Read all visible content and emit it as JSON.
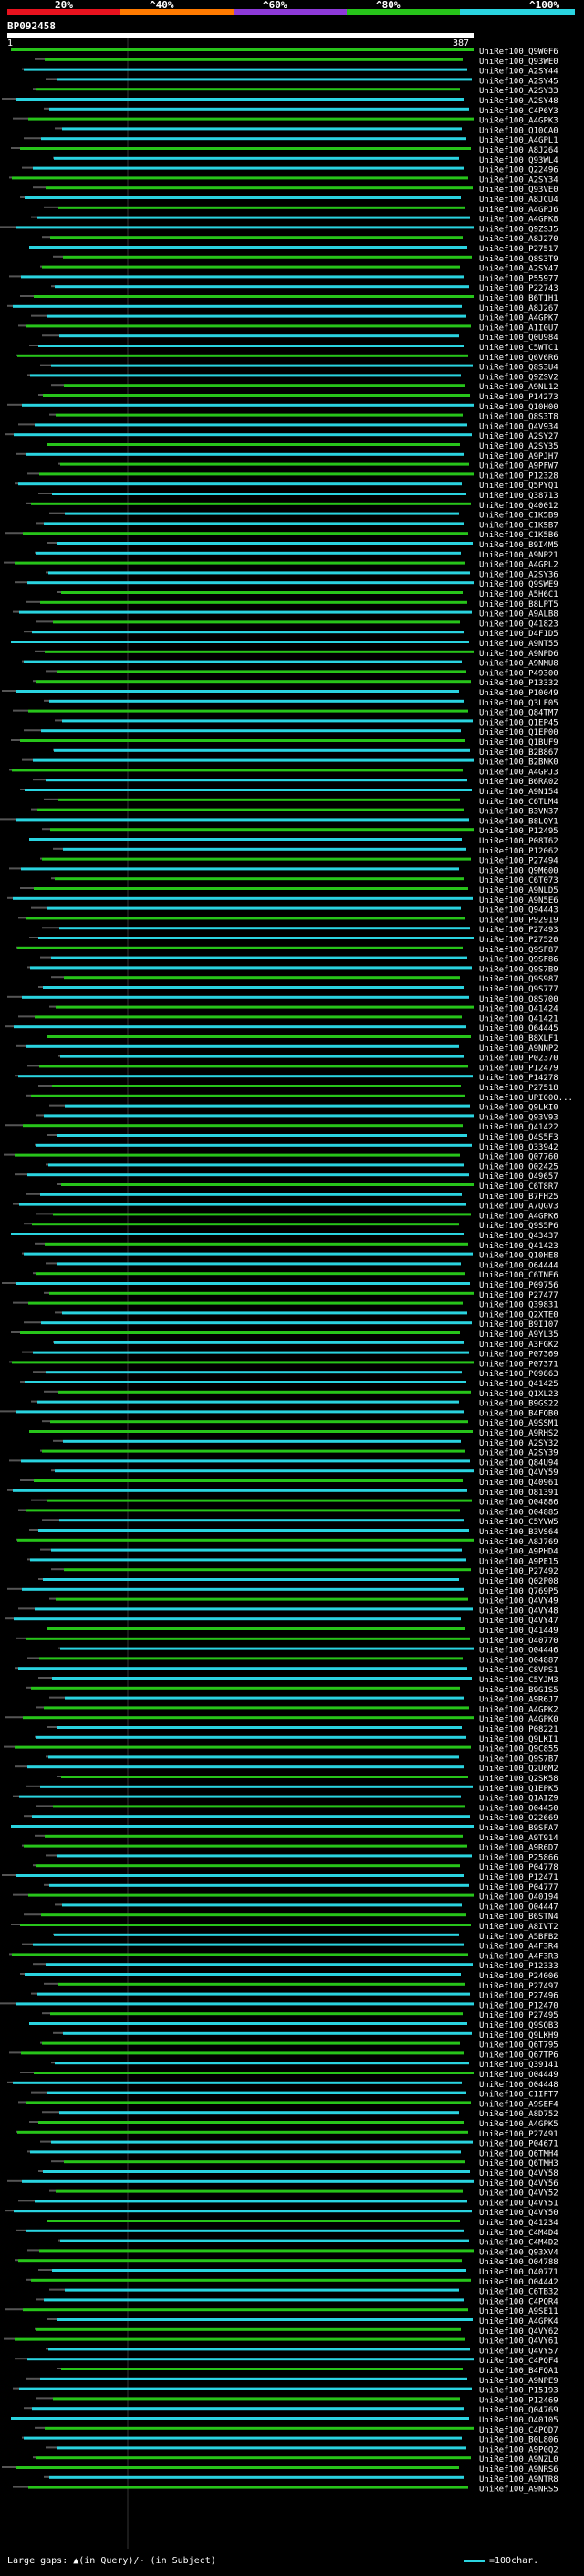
{
  "legend": {
    "labels": [
      "20%",
      "^40%",
      "^60%",
      "^80%",
      "^100%"
    ],
    "colors": [
      "#e8121e",
      "#ff7a00",
      "#8e3ad8",
      "#27c41a",
      "#2ad4e0"
    ]
  },
  "query": {
    "id": "BP092458",
    "start": "1",
    "end": "387"
  },
  "hits": [
    "UniRef100_Q9W0F6",
    "UniRef100_Q93WE0",
    "UniRef100_A2SY44",
    "UniRef100_A2SY45",
    "UniRef100_A2SY33",
    "UniRef100_A2SY48",
    "UniRef100_C4P6Y3",
    "UniRef100_A4GPK3",
    "UniRef100_Q10CA0",
    "UniRef100_A4GPL1",
    "UniRef100_A8J264",
    "UniRef100_Q93WL4",
    "UniRef100_Q22496",
    "UniRef100_A2SY34",
    "UniRef100_Q93VE0",
    "UniRef100_A8JCU4",
    "UniRef100_A4GPJ6",
    "UniRef100_A4GPK8",
    "UniRef100_Q9ZSJ5",
    "UniRef100_A8J270",
    "UniRef100_P27517",
    "UniRef100_Q8S3T9",
    "UniRef100_A2SY47",
    "UniRef100_P55977",
    "UniRef100_P22743",
    "UniRef100_B6T1H1",
    "UniRef100_A8J267",
    "UniRef100_A4GPK7",
    "UniRef100_A1I0U7",
    "UniRef100_Q0U984",
    "UniRef100_C5WTC1",
    "UniRef100_Q6V6R6",
    "UniRef100_Q8S3U4",
    "UniRef100_Q9ZSV2",
    "UniRef100_A9NL12",
    "UniRef100_P14273",
    "UniRef100_Q10H00",
    "UniRef100_Q8S3T8",
    "UniRef100_Q4V934",
    "UniRef100_A2SY27",
    "UniRef100_A2SY35",
    "UniRef100_A9PJH7",
    "UniRef100_A9PFW7",
    "UniRef100_P12328",
    "UniRef100_Q5PYQ1",
    "UniRef100_Q38713",
    "UniRef100_Q40012",
    "UniRef100_C1K5B9",
    "UniRef100_C1K5B7",
    "UniRef100_C1K5B6",
    "UniRef100_B9I4M5",
    "UniRef100_A9NP21",
    "UniRef100_A4GPL2",
    "UniRef100_A2SY36",
    "UniRef100_Q9SWE9",
    "UniRef100_A5H6C1",
    "UniRef100_B8LPT5",
    "UniRef100_A9ALB8",
    "UniRef100_Q41823",
    "UniRef100_D4F1D5",
    "UniRef100_A9NT55",
    "UniRef100_A9NPD6",
    "UniRef100_A9NMU8",
    "UniRef100_P49300",
    "UniRef100_P13332",
    "UniRef100_P10049",
    "UniRef100_Q3LF05",
    "UniRef100_Q84TM7",
    "UniRef100_Q1EP45",
    "UniRef100_Q1EP00",
    "UniRef100_Q1BUF9",
    "UniRef100_B2B867",
    "UniRef100_B2BNK0",
    "UniRef100_A4GPJ3",
    "UniRef100_B6RA02",
    "UniRef100_A9N154",
    "UniRef100_C6TLM4",
    "UniRef100_B3VN37",
    "UniRef100_B8LQY1",
    "UniRef100_P12495",
    "UniRef100_P08T62",
    "UniRef100_P12062",
    "UniRef100_P27494",
    "UniRef100_Q9M600",
    "UniRef100_C6T073",
    "UniRef100_A9NLD5",
    "UniRef100_A9N5E6",
    "UniRef100_Q94443",
    "UniRef100_P92919",
    "UniRef100_P27493",
    "UniRef100_P27520",
    "UniRef100_Q9SF87",
    "UniRef100_Q9SF86",
    "UniRef100_Q9S7B9",
    "UniRef100_Q9S987",
    "UniRef100_Q9S777",
    "UniRef100_Q8S700",
    "UniRef100_Q41424",
    "UniRef100_Q41421",
    "UniRef100_O64445",
    "UniRef100_B8XLF1",
    "UniRef100_A9NNP2",
    "UniRef100_P02370",
    "UniRef100_P12479",
    "UniRef100_P14278",
    "UniRef100_P27518",
    "UniRef100_UPI000...",
    "UniRef100_Q9LKI0",
    "UniRef100_Q93V93",
    "UniRef100_Q41422",
    "UniRef100_Q4S5F3",
    "UniRef100_Q33942",
    "UniRef100_Q07760",
    "UniRef100_O02425",
    "UniRef100_O49657",
    "UniRef100_C6T8R7",
    "UniRef100_B7FH25",
    "UniRef100_A7QGV3",
    "UniRef100_A4GPK6",
    "UniRef100_Q9S5P6",
    "UniRef100_Q43437",
    "UniRef100_Q41423",
    "UniRef100_Q10HE8",
    "UniRef100_O64444",
    "UniRef100_C6TNE6",
    "UniRef100_P09756",
    "UniRef100_P27477",
    "UniRef100_Q39831",
    "UniRef100_Q2XTE0",
    "UniRef100_B9I107",
    "UniRef100_A9YL35",
    "UniRef100_A3FGK2",
    "UniRef100_P07369",
    "UniRef100_P07371",
    "UniRef100_P09863",
    "UniRef100_Q41425",
    "UniRef100_Q1XL23",
    "UniRef100_B9GS22",
    "UniRef100_B4FQB0",
    "UniRef100_A9SSM1",
    "UniRef100_A9RHS2",
    "UniRef100_A2SY32",
    "UniRef100_A2SY39",
    "UniRef100_Q84U94",
    "UniRef100_Q4VY59",
    "UniRef100_Q40961",
    "UniRef100_O81391",
    "UniRef100_O04886",
    "UniRef100_O04885",
    "UniRef100_C5YVW5",
    "UniRef100_B3VS64",
    "UniRef100_A8J769",
    "UniRef100_A9PHD4",
    "UniRef100_A9PE15",
    "UniRef100_P27492",
    "UniRef100_Q02P08",
    "UniRef100_Q769P5",
    "UniRef100_Q4VY49",
    "UniRef100_Q4VY48",
    "UniRef100_Q4VY47",
    "UniRef100_Q41449",
    "UniRef100_O40770",
    "UniRef100_O04446",
    "UniRef100_O04887",
    "UniRef100_C8VPS1",
    "UniRef100_C5YJM3",
    "UniRef100_B9G1S5",
    "UniRef100_A9R6J7",
    "UniRef100_A4GPK2",
    "UniRef100_A4GPK0",
    "UniRef100_P08221",
    "UniRef100_Q9LKI1",
    "UniRef100_Q9C855",
    "UniRef100_Q9S7B7",
    "UniRef100_Q2U6M2",
    "UniRef100_Q2SK58",
    "UniRef100_Q1EPK5",
    "UniRef100_Q1AIZ9",
    "UniRef100_O04450",
    "UniRef100_O22669",
    "UniRef100_B9SFA7",
    "UniRef100_A9T914",
    "UniRef100_A9R6D7",
    "UniRef100_P25866",
    "UniRef100_P04778",
    "UniRef100_P12471",
    "UniRef100_P04777",
    "UniRef100_O40194",
    "UniRef100_O04447",
    "UniRef100_B6STN4",
    "UniRef100_A8IVT2",
    "UniRef100_A5BFB2",
    "UniRef100_A4F3R4",
    "UniRef100_A4F3R3",
    "UniRef100_P12333",
    "UniRef100_P24006",
    "UniRef100_P27497",
    "UniRef100_P27496",
    "UniRef100_P12470",
    "UniRef100_P27495",
    "UniRef100_Q9SQB3",
    "UniRef100_Q9LKH9",
    "UniRef100_Q6T795",
    "UniRef100_Q67TP6",
    "UniRef100_Q39141",
    "UniRef100_O04449",
    "UniRef100_O04448",
    "UniRef100_C1IFT7",
    "UniRef100_A9SEF4",
    "UniRef100_A8D752",
    "UniRef100_A4GPK5",
    "UniRef100_P27491",
    "UniRef100_P04671",
    "UniRef100_Q6TMH4",
    "UniRef100_Q6TMH3",
    "UniRef100_Q4VY58",
    "UniRef100_Q4VY56",
    "UniRef100_Q4VY52",
    "UniRef100_Q4VY51",
    "UniRef100_Q4VY50",
    "UniRef100_Q41234",
    "UniRef100_C4M4D4",
    "UniRef100_C4M4D2",
    "UniRef100_Q93XV4",
    "UniRef100_O04788",
    "UniRef100_O40771",
    "UniRef100_O04442",
    "UniRef100_C6TB32",
    "UniRef100_C4PQR4",
    "UniRef100_A9SE11",
    "UniRef100_A4GPK4",
    "UniRef100_Q4VY62",
    "UniRef100_Q4VY61",
    "UniRef100_Q4VY57",
    "UniRef100_C4PQF4",
    "UniRef100_B4FQA1",
    "UniRef100_A9NPE9",
    "UniRef100_P15193",
    "UniRef100_P12469",
    "UniRef100_Q04769",
    "UniRef100_O40105",
    "UniRef100_C4PQD7",
    "UniRef100_B0L806",
    "UniRef100_A9P0Q2",
    "UniRef100_A9NZL0",
    "UniRef100_A9NRS6",
    "UniRef100_A9NTR8",
    "UniRef100_A9NRS5"
  ],
  "footer": {
    "gaps": "Large gaps: ▲(in Query)/- (in Subject)",
    "scale": "=100char."
  }
}
